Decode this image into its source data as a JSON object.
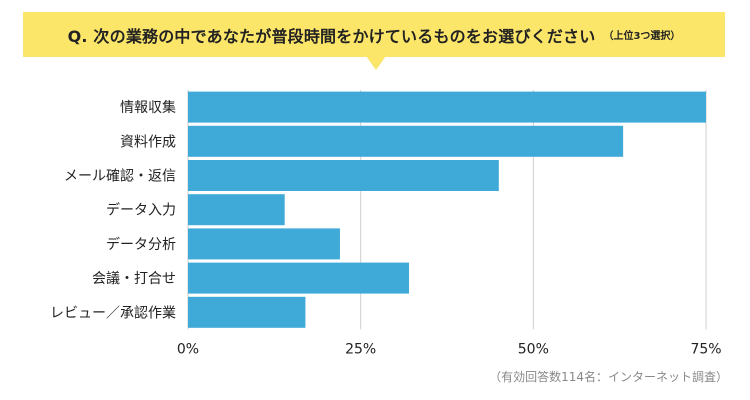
{
  "question": {
    "text": "Q. 次の業務の中であなたが普段時間をかけているものをお選びください",
    "note": "（上位3つ選択）"
  },
  "footnote": "（有効回答数114名：インターネット調査）",
  "colors": {
    "bar": "#3fa9d8",
    "banner": "#fce66a",
    "grid": "#cfcfcf",
    "text": "#222222"
  },
  "chart_data": {
    "type": "bar",
    "orientation": "horizontal",
    "categories": [
      "情報収集",
      "資料作成",
      "メール確認・返信",
      "データ入力",
      "データ分析",
      "会議・打合せ",
      "レビュー／承認作業"
    ],
    "values": [
      75,
      63,
      45,
      14,
      22,
      32,
      17
    ],
    "xlim": [
      0,
      75
    ],
    "xticks": [
      0,
      25,
      50,
      75
    ],
    "xtick_labels": [
      "0%",
      "25%",
      "50%",
      "75%"
    ],
    "grid": true
  }
}
